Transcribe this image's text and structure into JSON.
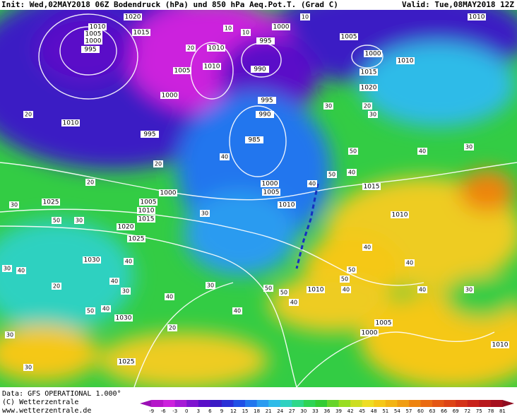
{
  "header": {
    "init": "Init: Wed,02MAY2018 06Z Bodendruck (hPa) und 850 hPa Aeq.Pot.T. (Grad C)",
    "valid": "Valid: Tue,08MAY2018 12Z"
  },
  "footer": {
    "data": "Data: GFS OPERATIONAL 1.000°",
    "copyright": "(C) Wetterzentrale",
    "url": "www.wetterzentrale.de"
  },
  "scale": {
    "labels": [
      -9,
      -6,
      -3,
      0,
      3,
      6,
      9,
      12,
      15,
      18,
      21,
      24,
      27,
      30,
      33,
      36,
      39,
      42,
      45,
      48,
      51,
      54,
      57,
      60,
      63,
      66,
      69,
      72,
      75,
      78,
      81
    ],
    "colors": [
      "#9b0fb5",
      "#b516c9",
      "#cc22dd",
      "#a61bd6",
      "#7f14cf",
      "#5a10c8",
      "#3a1ac4",
      "#2a2fd6",
      "#2050e6",
      "#2276ee",
      "#2a9bf0",
      "#2fbbe8",
      "#2fd1c0",
      "#2fd88a",
      "#2fd455",
      "#33cc33",
      "#66d42a",
      "#99dd22",
      "#ccdd22",
      "#eedd22",
      "#f5c818",
      "#f2b414",
      "#f09d12",
      "#ee8410",
      "#ea6b12",
      "#e45614",
      "#dd4416",
      "#d43218",
      "#c8221a",
      "#b8181c",
      "#a6101e",
      "#8e0c20"
    ]
  },
  "isobars": [
    1020,
    1010,
    1005,
    1000,
    995,
    1015,
    1010,
    1005,
    1010,
    1000,
    1010,
    995,
    1000,
    995,
    990,
    995,
    990,
    985,
    1005,
    1000,
    1010,
    1015,
    1020,
    1010,
    1000,
    1005,
    1010,
    1015,
    1010,
    1000,
    1005,
    1010,
    1015,
    1020,
    1025,
    1025,
    1030,
    1030,
    1010,
    1005,
    1000,
    1025,
    1010
  ],
  "theta_labels": [
    20,
    30,
    20,
    10,
    10,
    10,
    20,
    30,
    40,
    30,
    20,
    20,
    30,
    40,
    50,
    30,
    40,
    50,
    40,
    30,
    50,
    40,
    30,
    40,
    40,
    20,
    30,
    40,
    50,
    40,
    30,
    40,
    50,
    50,
    40,
    40,
    40,
    30,
    20,
    50,
    50,
    40,
    40,
    30,
    30
  ]
}
